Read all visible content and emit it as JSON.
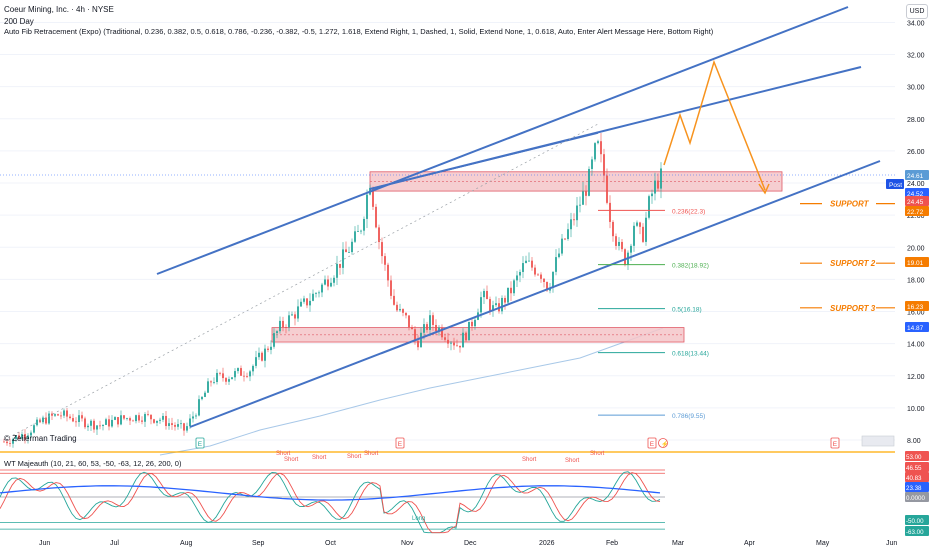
{
  "header": {
    "title": "Coeur Mining, Inc. · 4h · NYSE",
    "ma_label": "200 Day",
    "fib_label": "Auto Fib Retracement (Expo) (Traditional, 0.236, 0.382, 0.5, 0.618, 0.786, -0.236, -0.382, -0.5, 1.272, 1.618, Extend Right, 1, Dashed, 1, Solid, Extend None, 1, 0.618, Auto, Enter Alert Message Here, Bottom Right)"
  },
  "currency_button": "USD",
  "watermark": "© Zeiierman Trading",
  "indicator_label": "WT Majeauth (10, 21, 60, 53, -50, -63, 12, 26, 200, 0)",
  "price_axis": {
    "ticks": [
      "34.00",
      "32.00",
      "30.00",
      "28.00",
      "26.00",
      "24.00",
      "22.00",
      "20.00",
      "18.00",
      "16.00",
      "14.00",
      "12.00",
      "10.00",
      "8.00"
    ],
    "badges": [
      {
        "text": "24.61",
        "color": "#5b9bd5"
      },
      {
        "text": "Post",
        "color": "#1e53e5",
        "tag": true
      },
      {
        "text": "24.52",
        "color": "#2962ff"
      },
      {
        "text": "24.45",
        "color": "#ef5350"
      },
      {
        "text": "22.72",
        "color": "#f57c00"
      },
      {
        "text": "19.01",
        "color": "#f57c00"
      },
      {
        "text": "16.23",
        "color": "#f57c00"
      },
      {
        "text": "14.87",
        "color": "#2962ff"
      }
    ]
  },
  "osc_axis": {
    "badges": [
      {
        "text": "53.00",
        "color": "#ef5350"
      },
      {
        "text": "46.55",
        "color": "#ef5350"
      },
      {
        "text": "40.83",
        "color": "#ef5350"
      },
      {
        "text": "23.38",
        "color": "#2962ff"
      },
      {
        "text": "0.0000",
        "color": "#9598a1"
      },
      {
        "text": "-50.00",
        "color": "#26a69a"
      },
      {
        "text": "-63.00",
        "color": "#26a69a"
      }
    ]
  },
  "time_axis": [
    "Jun",
    "Jul",
    "Aug",
    "Sep",
    "Oct",
    "Nov",
    "Dec",
    "2026",
    "Feb",
    "Mar",
    "Apr",
    "May",
    "Jun"
  ],
  "fib_levels": [
    {
      "label": "0.236(22.3)",
      "price": 22.3,
      "color": "#ef5350"
    },
    {
      "label": "0.382(18.92)",
      "price": 18.92,
      "color": "#4caf50"
    },
    {
      "label": "0.5(16.18)",
      "price": 16.18,
      "color": "#26a69a"
    },
    {
      "label": "0.618(13.44)",
      "price": 13.44,
      "color": "#26a69a"
    },
    {
      "label": "0.786(9.55)",
      "price": 9.55,
      "color": "#5b9bd5"
    }
  ],
  "support_labels": [
    {
      "label": "SUPPORT",
      "price": 22.72
    },
    {
      "label": "SUPPORT 2",
      "price": 19.01
    },
    {
      "label": "SUPPORT 3",
      "price": 16.23
    }
  ],
  "osc_signals": {
    "short": "Short",
    "long": "Long"
  },
  "event_markers": [
    "E",
    "E",
    "E",
    "E"
  ],
  "colors": {
    "channel": "#4472c4",
    "projection": "#f7931e",
    "zone_fill": "#f4c6c9",
    "zone_stroke": "#e05a66",
    "up": "#26a69a",
    "down": "#ef5350",
    "ma": "#a8c8e8",
    "support": "#f57c00"
  }
}
